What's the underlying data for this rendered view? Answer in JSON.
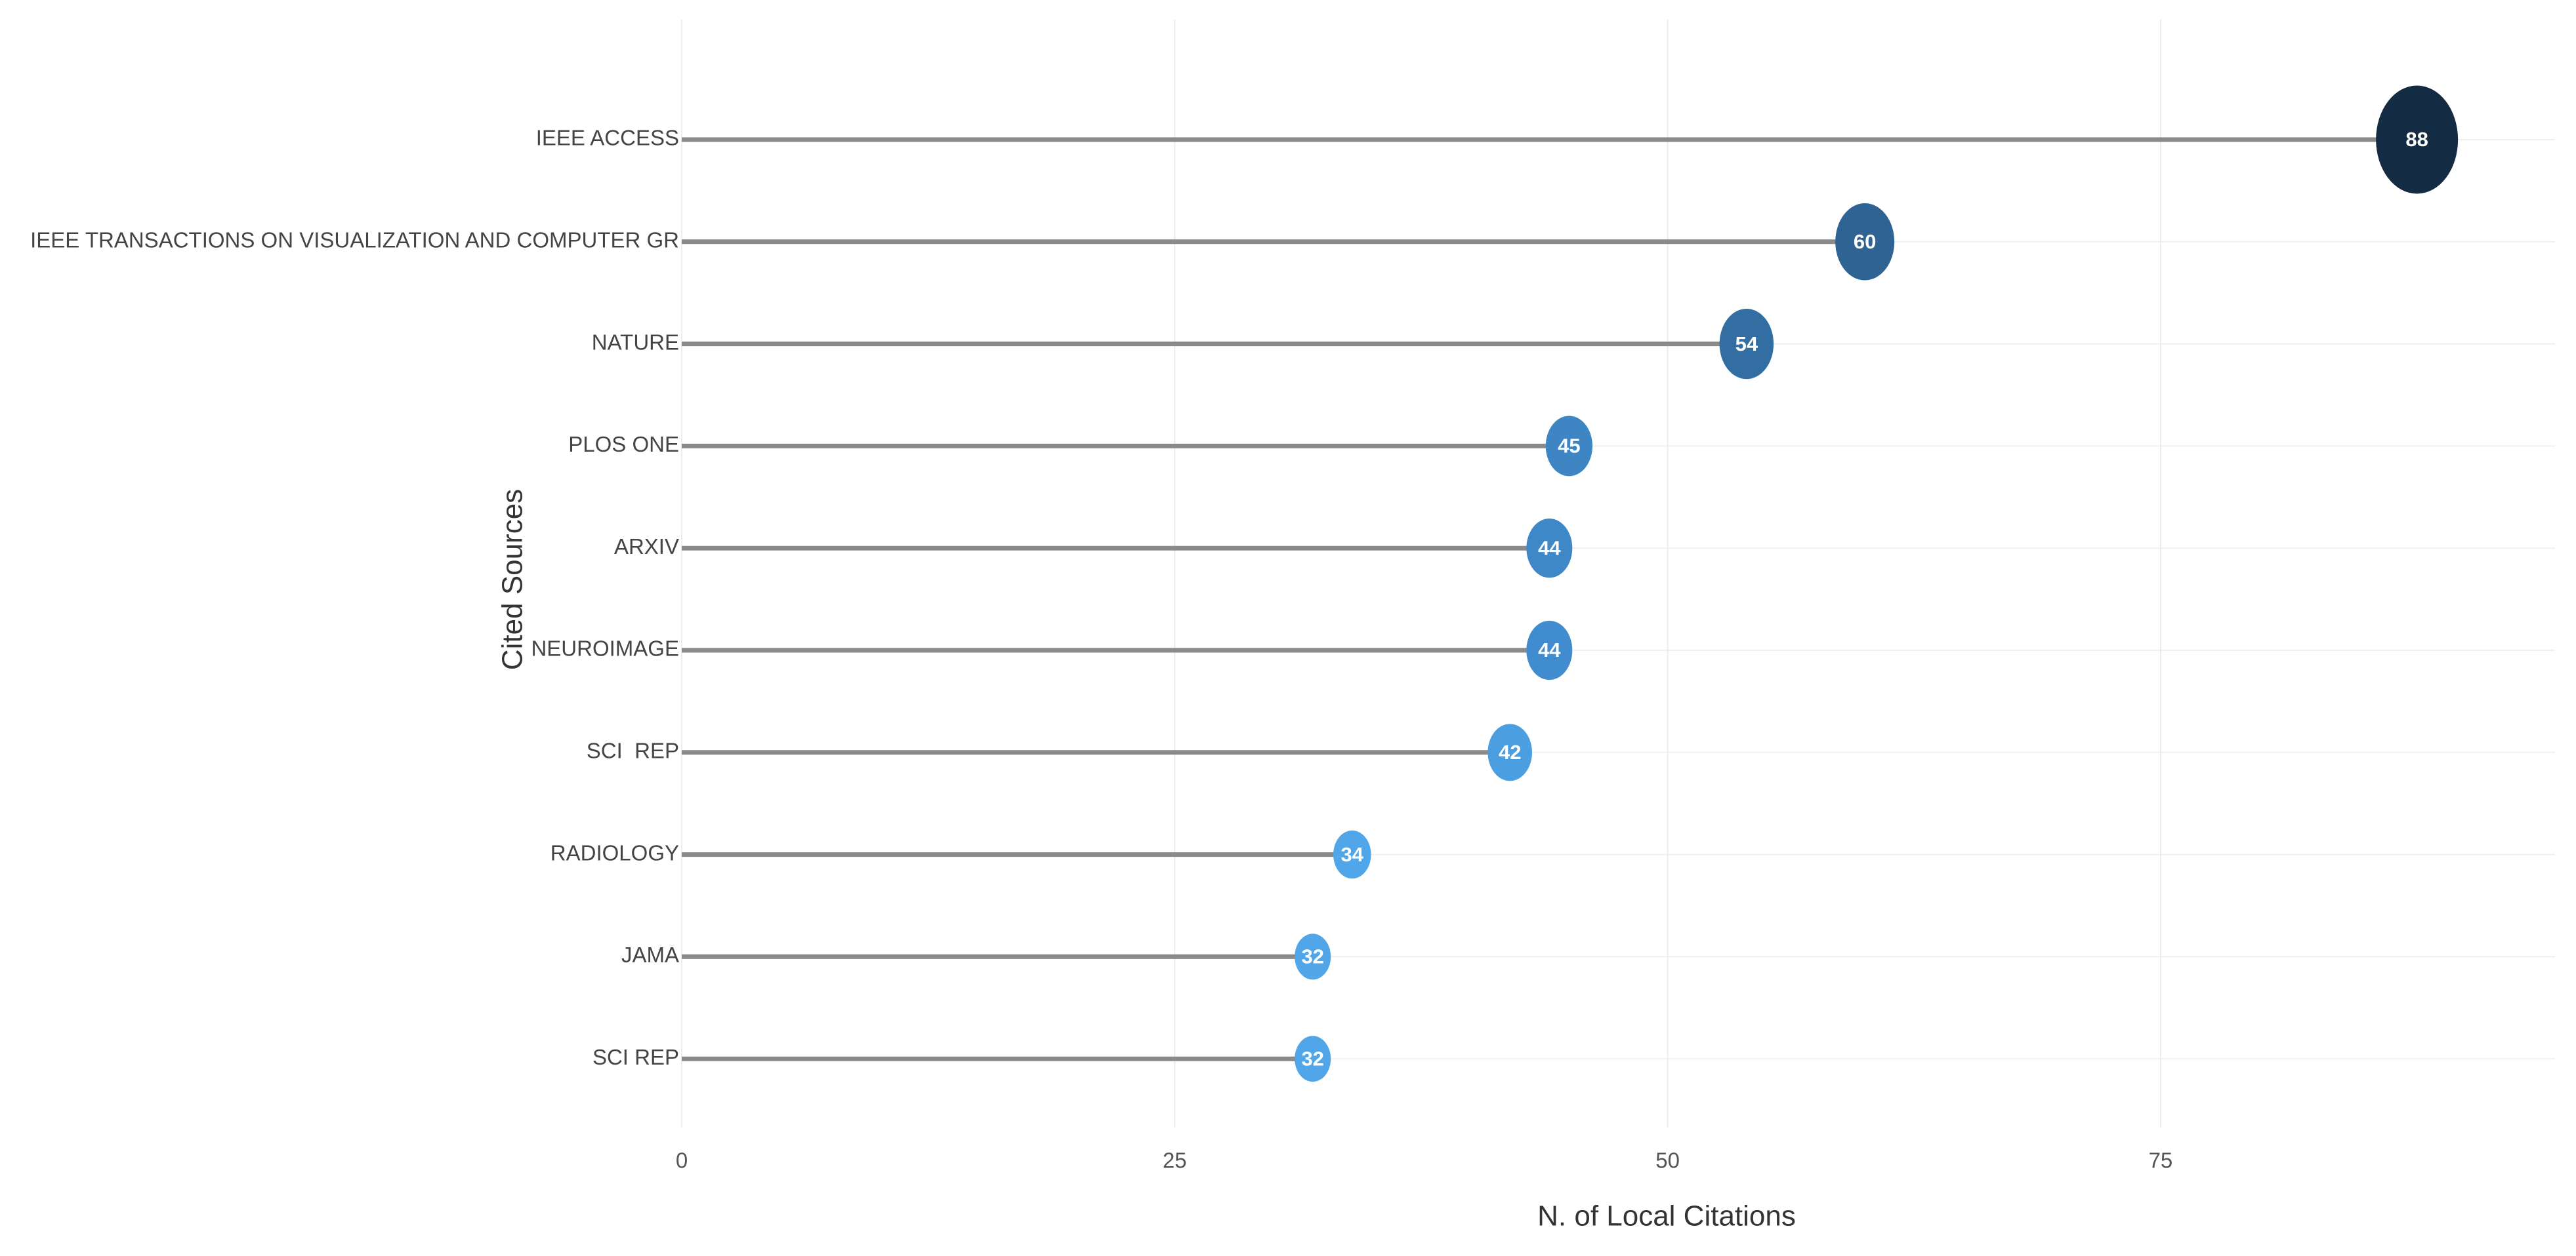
{
  "chart_data": {
    "type": "lollipop",
    "x_label": "N. of Local Citations",
    "y_label": "Cited Sources",
    "categories": [
      "IEEE ACCESS",
      "IEEE TRANSACTIONS ON VISUALIZATION AND COMPUTER GR",
      "NATURE",
      "PLOS ONE",
      "ARXIV",
      "NEUROIMAGE",
      "SCI  REP",
      "RADIOLOGY",
      "JAMA",
      "SCI REP"
    ],
    "values": [
      88,
      60,
      54,
      45,
      44,
      44,
      42,
      34,
      32,
      32
    ],
    "colors": [
      "#132b43",
      "#2e6394",
      "#336ea2",
      "#3d85c3",
      "#3f88c7",
      "#418cce",
      "#4b9ee0",
      "#50a6e8",
      "#50a6e8",
      "#50a6e8"
    ],
    "stem_color": "#8a8a8a",
    "xlim": [
      0,
      95
    ],
    "xticks": [
      0,
      25,
      50,
      75
    ],
    "grid": true
  }
}
